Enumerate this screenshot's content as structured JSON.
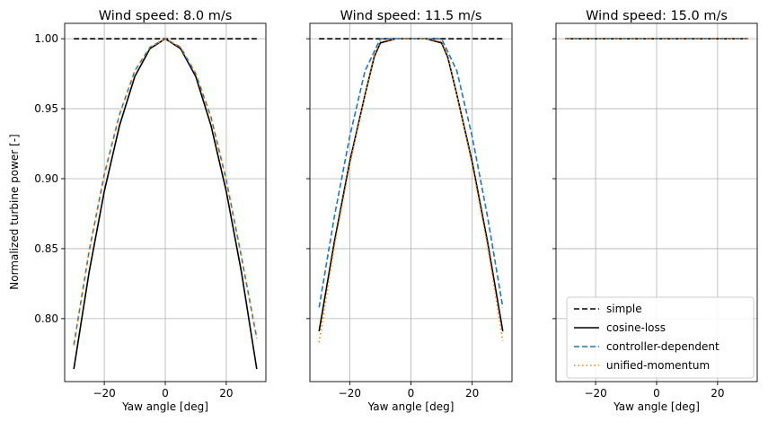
{
  "chart_data": {
    "type": "line",
    "shared_y": true,
    "ylabel": "Normalized turbine power [-]",
    "ylim": [
      0.755,
      1.011
    ],
    "yticks": [
      0.8,
      0.85,
      0.9,
      0.95,
      1.0
    ],
    "ytick_labels": [
      "0.80",
      "0.85",
      "0.90",
      "0.95",
      "1.00"
    ],
    "grid": true,
    "legend": {
      "panel": 2,
      "placement": "lower-right",
      "entries": [
        {
          "label": "simple",
          "color": "#000000",
          "dash": "dashed"
        },
        {
          "label": "cosine-loss",
          "color": "#000000",
          "dash": "solid"
        },
        {
          "label": "controller-dependent",
          "color": "#1f77b4",
          "dash": "dashed"
        },
        {
          "label": "unified-momentum",
          "color": "#ff7f0e",
          "dash": "dotted"
        }
      ]
    },
    "panels": [
      {
        "title": "Wind speed: 8.0 m/s",
        "xlabel": "Yaw angle [deg]",
        "xlim": [
          -33,
          33
        ],
        "xticks": [
          -20,
          0,
          20
        ],
        "xtick_labels": [
          "−20",
          "0",
          "20"
        ],
        "series": [
          {
            "name": "simple",
            "x": [
              -30,
              30
            ],
            "y": [
              1.0,
              1.0
            ]
          },
          {
            "name": "cosine-loss",
            "x": [
              -30,
              -25,
              -20,
              -15,
              -10,
              -5,
              0,
              5,
              10,
              15,
              20,
              25,
              30
            ],
            "y": [
              0.764,
              0.833,
              0.891,
              0.938,
              0.973,
              0.993,
              1.0,
              0.993,
              0.973,
              0.938,
              0.891,
              0.833,
              0.764
            ]
          },
          {
            "name": "controller-dependent",
            "x": [
              -30,
              -25,
              -20,
              -15,
              -10,
              -5,
              0,
              5,
              10,
              15,
              20,
              25,
              30
            ],
            "y": [
              0.781,
              0.848,
              0.903,
              0.946,
              0.977,
              0.994,
              1.0,
              0.994,
              0.975,
              0.944,
              0.899,
              0.844,
              0.786
            ]
          },
          {
            "name": "unified-momentum",
            "x": [
              -30,
              -25,
              -20,
              -15,
              -10,
              -5,
              0,
              5,
              10,
              15,
              20,
              25,
              30
            ],
            "y": [
              0.781,
              0.848,
              0.903,
              0.946,
              0.977,
              0.994,
              1.0,
              0.994,
              0.975,
              0.944,
              0.899,
              0.844,
              0.786
            ]
          }
        ]
      },
      {
        "title": "Wind speed: 11.5 m/s",
        "xlabel": "Yaw angle [deg]",
        "xlim": [
          -33,
          33
        ],
        "xticks": [
          -20,
          0,
          20
        ],
        "xtick_labels": [
          "−20",
          "0",
          "20"
        ],
        "series": [
          {
            "name": "simple",
            "x": [
              -30,
              30
            ],
            "y": [
              1.0,
              1.0
            ]
          },
          {
            "name": "cosine-loss",
            "x": [
              -30,
              -25,
              -20,
              -15,
              -12,
              -10,
              -5,
              0,
              5,
              10,
              12,
              15,
              20,
              25,
              30
            ],
            "y": [
              0.791,
              0.855,
              0.912,
              0.96,
              0.987,
              0.997,
              1.0,
              1.0,
              1.0,
              0.997,
              0.987,
              0.96,
              0.912,
              0.855,
              0.791
            ]
          },
          {
            "name": "controller-dependent",
            "x": [
              -30,
              -25,
              -20,
              -15,
              -10,
              -8,
              0,
              8,
              10,
              15,
              20,
              25,
              30
            ],
            "y": [
              0.808,
              0.873,
              0.93,
              0.977,
              1.0,
              1.0,
              1.0,
              1.0,
              1.0,
              0.977,
              0.93,
              0.873,
              0.808
            ]
          },
          {
            "name": "unified-momentum",
            "x": [
              -30,
              -25,
              -20,
              -15,
              -12,
              -10,
              -5,
              0,
              5,
              10,
              12,
              15,
              20,
              25,
              30
            ],
            "y": [
              0.783,
              0.852,
              0.91,
              0.96,
              0.988,
              0.998,
              1.0,
              1.0,
              1.0,
              0.998,
              0.988,
              0.96,
              0.91,
              0.852,
              0.784
            ]
          }
        ]
      },
      {
        "title": "Wind speed: 15.0 m/s",
        "xlabel": "Yaw angle [deg]",
        "xlim": [
          -33,
          33
        ],
        "xticks": [
          -20,
          0,
          20
        ],
        "xtick_labels": [
          "−20",
          "0",
          "20"
        ],
        "series": [
          {
            "name": "simple",
            "x": [
              -30,
              30
            ],
            "y": [
              1.0,
              1.0
            ]
          },
          {
            "name": "cosine-loss",
            "x": [
              -30,
              30
            ],
            "y": [
              1.0,
              1.0
            ]
          },
          {
            "name": "controller-dependent",
            "x": [
              -30,
              30
            ],
            "y": [
              1.0,
              1.0
            ]
          },
          {
            "name": "unified-momentum",
            "x": [
              -30,
              30
            ],
            "y": [
              1.0,
              1.0
            ]
          }
        ]
      }
    ]
  }
}
